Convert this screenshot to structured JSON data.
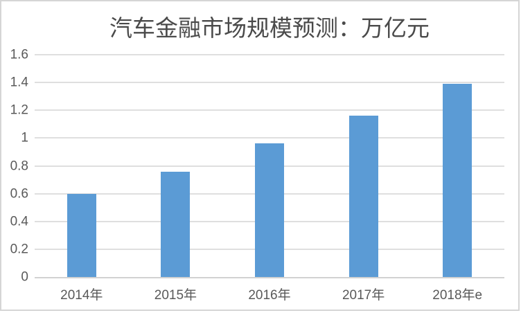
{
  "chart_data": {
    "type": "bar",
    "title": "汽车金融市场规模预测：万亿元",
    "categories": [
      "2014年",
      "2015年",
      "2016年",
      "2017年",
      "2018年e"
    ],
    "values": [
      0.6,
      0.76,
      0.96,
      1.16,
      1.39
    ],
    "xlabel": "",
    "ylabel": "",
    "ylim": [
      0,
      1.6
    ],
    "ytick_values": [
      0,
      0.2,
      0.4,
      0.6,
      0.8,
      1,
      1.2,
      1.4,
      1.6
    ],
    "ytick_labels": [
      "0",
      "0.2",
      "0.4",
      "0.6",
      "0.8",
      "1",
      "1.2",
      "1.4",
      "1.6"
    ],
    "grid": "horizontal",
    "legend": "none"
  },
  "colors": {
    "bar": "#5B9BD5",
    "gridline": "#DFDFDF",
    "axis_line": "#D2D2D2",
    "tick_label": "#595959",
    "title": "#4A4A4A",
    "frame_border": "#D5D5D5",
    "background": "#FFFFFF"
  }
}
